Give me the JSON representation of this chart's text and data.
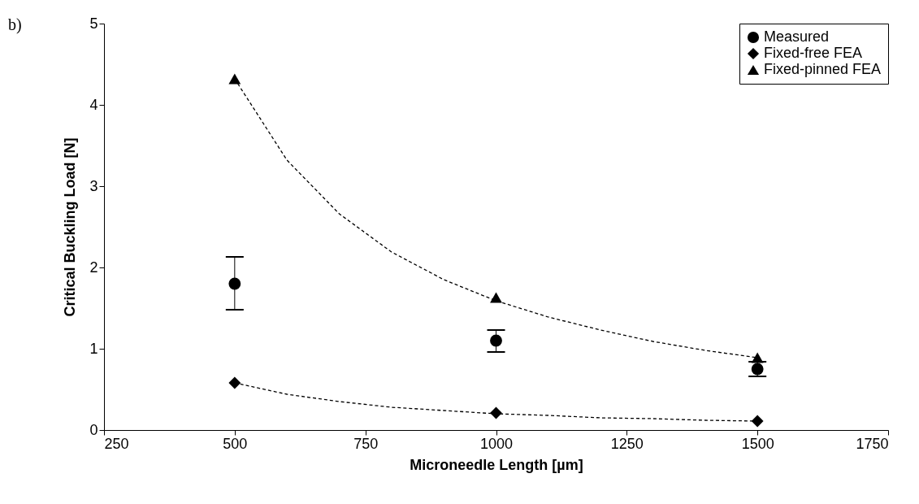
{
  "chart_data": {
    "type": "scatter",
    "xlabel": "Microneedle Length [µm]",
    "ylabel": "Critical Buckling Load [N]",
    "annotations": [
      "b)"
    ],
    "xlim": [
      250,
      1750
    ],
    "xticks": [
      250,
      500,
      750,
      1000,
      1250,
      1500,
      1750
    ],
    "ylim": [
      0,
      5
    ],
    "yticks": [
      0,
      1,
      2,
      3,
      4,
      5
    ],
    "grid": false,
    "legend": "top right",
    "series": [
      {
        "name": "Measured",
        "color": "#000000",
        "marker": "circle",
        "x": [
          500,
          1000,
          1500
        ],
        "values": [
          1.8,
          1.1,
          0.75
        ],
        "errors": [
          [
            1.48,
            2.13
          ],
          [
            0.96,
            1.23
          ],
          [
            0.66,
            0.84
          ]
        ]
      },
      {
        "name": "Fixed-free FEA",
        "color": "#000000",
        "marker": "diamond",
        "x": [
          500,
          1000,
          1500
        ],
        "values": [
          0.58,
          0.21,
          0.11
        ]
      },
      {
        "name": "Fixed-pinned FEA",
        "color": "#000000",
        "marker": "triangle",
        "x": [
          500,
          1000,
          1500
        ],
        "values": [
          4.32,
          1.63,
          0.89
        ]
      },
      {
        "type": "line",
        "color": "#000000",
        "line_style": "dashed",
        "marker": "none",
        "x": [
          500,
          600,
          700,
          800,
          900,
          1000,
          1100,
          1200,
          1300,
          1400,
          1500
        ],
        "values": [
          4.32,
          3.32,
          2.66,
          2.19,
          1.85,
          1.59,
          1.39,
          1.23,
          1.09,
          0.98,
          0.89
        ]
      },
      {
        "type": "line",
        "color": "#000000",
        "line_style": "dashed",
        "marker": "none",
        "x": [
          500,
          600,
          700,
          800,
          900,
          1000,
          1100,
          1200,
          1300,
          1400,
          1500
        ],
        "values": [
          0.58,
          0.44,
          0.35,
          0.28,
          0.24,
          0.2,
          0.18,
          0.15,
          0.14,
          0.12,
          0.11
        ]
      }
    ]
  }
}
